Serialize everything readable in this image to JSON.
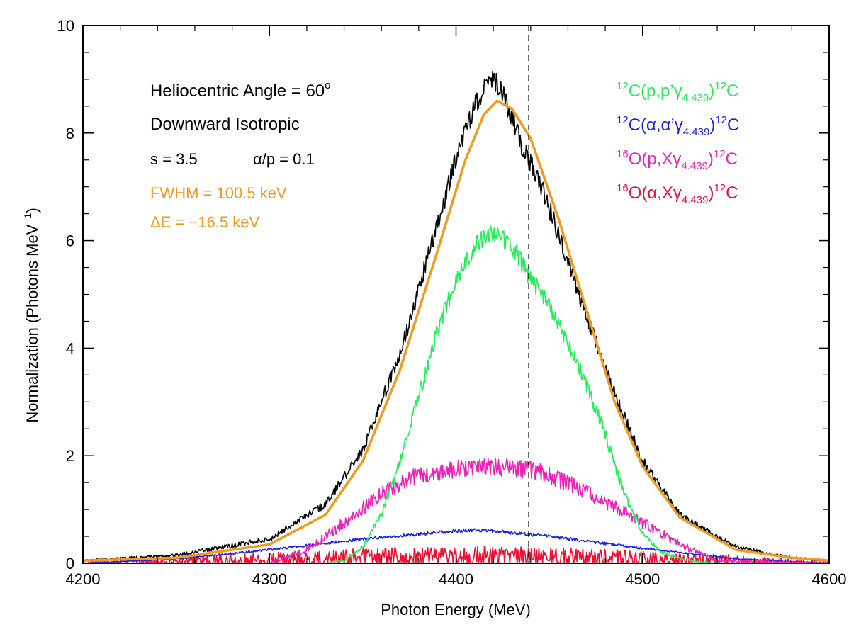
{
  "chart_data": {
    "type": "line",
    "xlabel": "Photon Energy (MeV)",
    "ylabel": "Normalization (Photons MeV",
    "ylabel_sup": "−1",
    "ylabel_end": ")",
    "xlim": [
      4200,
      4600
    ],
    "ylim": [
      0,
      10
    ],
    "x_ticks": [
      "4200",
      "4300",
      "4400",
      "4500",
      "4600"
    ],
    "y_ticks": [
      "0",
      "2",
      "4",
      "6",
      "8",
      "10"
    ],
    "reference_line_x": 4439,
    "annotations": {
      "angle": "Heliocentric Angle = 60",
      "angle_sup": "o",
      "direction": "Downward Isotropic",
      "s": "s = 3.5",
      "ratio": "α/p = 0.1",
      "fwhm": "FWHM = 100.5 keV",
      "delta_e": "ΔE = −16.5 keV"
    },
    "legend": [
      {
        "pre_sup": "12",
        "main": "C(p,p’γ",
        "sub": "4.439",
        "close": ")",
        "post_sup": "12",
        "tail": "C",
        "color": "#22ee55"
      },
      {
        "pre_sup": "12",
        "main": "C(α,α’γ",
        "sub": "4.439",
        "close": ")",
        "post_sup": "12",
        "tail": "C",
        "color": "#1a22e6"
      },
      {
        "pre_sup": "16",
        "main": "O(p,Xγ",
        "sub": "4.439",
        "close": ")",
        "post_sup": "12",
        "tail": "C",
        "color": "#ee22bb"
      },
      {
        "pre_sup": "16",
        "main": "O(α,Xγ",
        "sub": "4.439",
        "close": ")",
        "post_sup": "12",
        "tail": "C",
        "color": "#ee1133"
      }
    ],
    "legend_position": "top-right",
    "series": [
      {
        "id": "total",
        "color": "#000000",
        "x": [
          4200,
          4250,
          4300,
          4330,
          4350,
          4370,
          4390,
          4405,
          4415,
          4420,
          4425,
          4435,
          4445,
          4460,
          4480,
          4500,
          4520,
          4550,
          4580,
          4600
        ],
        "values": [
          0.05,
          0.15,
          0.45,
          1.1,
          2.1,
          3.9,
          6.3,
          8.1,
          8.85,
          9.0,
          8.7,
          7.8,
          7.1,
          5.6,
          3.6,
          1.9,
          0.9,
          0.3,
          0.1,
          0.05
        ]
      },
      {
        "id": "gaussian-fit",
        "color": "#f29a1f",
        "x": [
          4200,
          4250,
          4300,
          4330,
          4350,
          4370,
          4390,
          4405,
          4415,
          4422,
          4430,
          4440,
          4455,
          4470,
          4485,
          4500,
          4520,
          4550,
          4580,
          4600
        ],
        "values": [
          0.05,
          0.1,
          0.35,
          0.9,
          1.9,
          3.6,
          5.8,
          7.5,
          8.35,
          8.6,
          8.45,
          7.9,
          6.4,
          4.7,
          3.0,
          1.8,
          0.85,
          0.25,
          0.1,
          0.05
        ]
      },
      {
        "id": "c-pp",
        "color": "#22ee55",
        "x": [
          4330,
          4340,
          4350,
          4360,
          4370,
          4380,
          4390,
          4400,
          4410,
          4420,
          4430,
          4440,
          4450,
          4460,
          4470,
          4480,
          4490,
          4500,
          4510,
          4520,
          4530,
          4540
        ],
        "values": [
          0.0,
          0.05,
          0.3,
          0.9,
          1.9,
          3.1,
          4.3,
          5.3,
          5.9,
          6.2,
          5.9,
          5.3,
          4.8,
          4.1,
          3.3,
          2.4,
          1.3,
          0.55,
          0.2,
          0.08,
          0.03,
          0.0
        ]
      },
      {
        "id": "c-aa",
        "color": "#1a22e6",
        "x": [
          4200,
          4250,
          4300,
          4350,
          4400,
          4410,
          4420,
          4450,
          4500,
          4550,
          4600
        ],
        "values": [
          0.0,
          0.08,
          0.25,
          0.45,
          0.6,
          0.62,
          0.6,
          0.5,
          0.28,
          0.08,
          0.0
        ]
      },
      {
        "id": "o-px",
        "color": "#ee22bb",
        "x": [
          4200,
          4300,
          4320,
          4340,
          4360,
          4380,
          4400,
          4420,
          4440,
          4460,
          4480,
          4500,
          4520,
          4540,
          4600
        ],
        "values": [
          0.0,
          0.0,
          0.25,
          0.75,
          1.3,
          1.65,
          1.75,
          1.8,
          1.75,
          1.5,
          1.15,
          0.75,
          0.35,
          0.05,
          0.0
        ]
      },
      {
        "id": "o-ax",
        "color": "#ee1133",
        "x": [
          4200,
          4300,
          4350,
          4400,
          4450,
          4500,
          4550,
          4600
        ],
        "values": [
          0.0,
          0.06,
          0.1,
          0.13,
          0.12,
          0.08,
          0.04,
          0.0
        ]
      }
    ]
  }
}
